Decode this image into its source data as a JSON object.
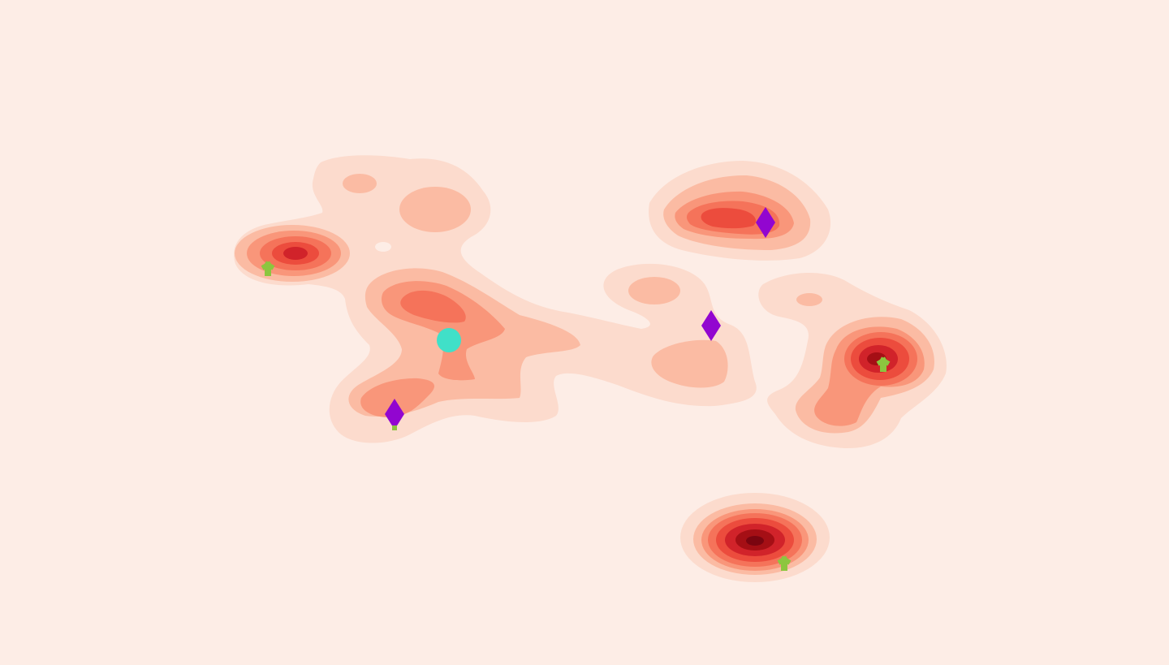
{
  "map": {
    "background": "#fdede6",
    "colors": {
      "level1": "#fcdbcd",
      "level2": "#fbbba3",
      "level3": "#f9967a",
      "level4": "#f5735a",
      "level5": "#ec4c3d",
      "level6": "#d1232a",
      "level7": "#a50f15",
      "level8": "#7a0510",
      "hole": "#fdede6"
    },
    "markers": [
      {
        "kind": "diamond",
        "icon": "diamond-icon",
        "color": "#9206d0"
      },
      {
        "kind": "diamond",
        "icon": "diamond-icon",
        "color": "#9206d0"
      },
      {
        "kind": "diamond",
        "icon": "diamond-icon",
        "color": "#9206d0"
      },
      {
        "kind": "tri-branch",
        "icon": "tri-branch-icon",
        "color": "#8cc63f"
      },
      {
        "kind": "tri-branch",
        "icon": "tri-branch-icon",
        "color": "#8cc63f"
      },
      {
        "kind": "tri-branch",
        "icon": "tri-branch-icon",
        "color": "#8cc63f"
      },
      {
        "kind": "circle",
        "icon": "circle-icon",
        "color": "#40e0c8"
      }
    ]
  }
}
